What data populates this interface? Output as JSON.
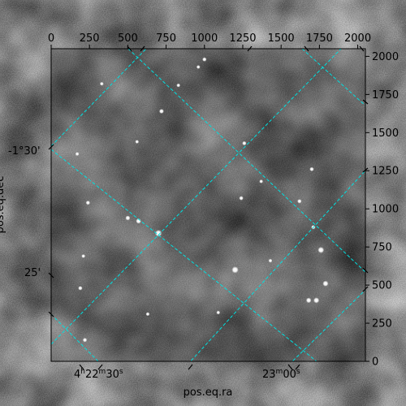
{
  "chart_data": {
    "type": "heatmap",
    "title": "",
    "xlabel": "pos.eq.ra",
    "ylabel": "pos.eq.dec",
    "pixel_axes": {
      "x_range": [
        0,
        2050
      ],
      "y_range": [
        0,
        2050
      ],
      "x_ticks": [
        0,
        250,
        500,
        750,
        1000,
        1250,
        1500,
        1750,
        2000
      ],
      "y_ticks": [
        0,
        250,
        500,
        750,
        1000,
        1250,
        1500,
        1750,
        2000
      ],
      "x_ticks_position": "top",
      "y_ticks_position": "right"
    },
    "world_axes": {
      "ra_labels": [
        {
          "text": "4h22m30s",
          "parts": [
            "4",
            "h",
            "22",
            "m",
            "30",
            "s"
          ]
        },
        {
          "text": "23m00s",
          "parts": [
            "",
            "",
            "23",
            "m",
            "00",
            "s"
          ]
        }
      ],
      "dec_labels": [
        {
          "text": "-1°30'"
        },
        {
          "text": "25'"
        }
      ]
    },
    "grid": true,
    "grid_color": "#00e0e0",
    "colormap": "greyscale astronomical image",
    "sources": [
      {
        "x": 700,
        "y": 840,
        "brightness": 1.0
      },
      {
        "x": 1200,
        "y": 600,
        "brightness": 1.0
      },
      {
        "x": 1760,
        "y": 730,
        "brightness": 0.9
      },
      {
        "x": 1790,
        "y": 510,
        "brightness": 0.8
      },
      {
        "x": 1730,
        "y": 400,
        "brightness": 0.8
      },
      {
        "x": 1680,
        "y": 400,
        "brightness": 0.7
      },
      {
        "x": 570,
        "y": 920,
        "brightness": 0.7
      },
      {
        "x": 500,
        "y": 940,
        "brightness": 0.6
      },
      {
        "x": 720,
        "y": 1640,
        "brightness": 0.6
      },
      {
        "x": 1260,
        "y": 1430,
        "brightness": 0.5
      },
      {
        "x": 1240,
        "y": 1070,
        "brightness": 0.5
      },
      {
        "x": 1620,
        "y": 1050,
        "brightness": 0.5
      },
      {
        "x": 1710,
        "y": 880,
        "brightness": 0.5
      },
      {
        "x": 1700,
        "y": 1260,
        "brightness": 0.5
      },
      {
        "x": 240,
        "y": 1040,
        "brightness": 0.5
      },
      {
        "x": 190,
        "y": 480,
        "brightness": 0.5
      },
      {
        "x": 220,
        "y": 140,
        "brightness": 0.5
      },
      {
        "x": 210,
        "y": 690,
        "brightness": 0.4
      },
      {
        "x": 330,
        "y": 1820,
        "brightness": 0.4
      },
      {
        "x": 560,
        "y": 1440,
        "brightness": 0.4
      },
      {
        "x": 1370,
        "y": 1180,
        "brightness": 0.4
      },
      {
        "x": 1090,
        "y": 320,
        "brightness": 0.4
      },
      {
        "x": 630,
        "y": 310,
        "brightness": 0.4
      },
      {
        "x": 1430,
        "y": 660,
        "brightness": 0.4
      },
      {
        "x": 830,
        "y": 1810,
        "brightness": 0.4
      },
      {
        "x": 1000,
        "y": 1980,
        "brightness": 0.5
      },
      {
        "x": 960,
        "y": 1930,
        "brightness": 0.4
      },
      {
        "x": 170,
        "y": 1360,
        "brightness": 0.4
      }
    ]
  }
}
